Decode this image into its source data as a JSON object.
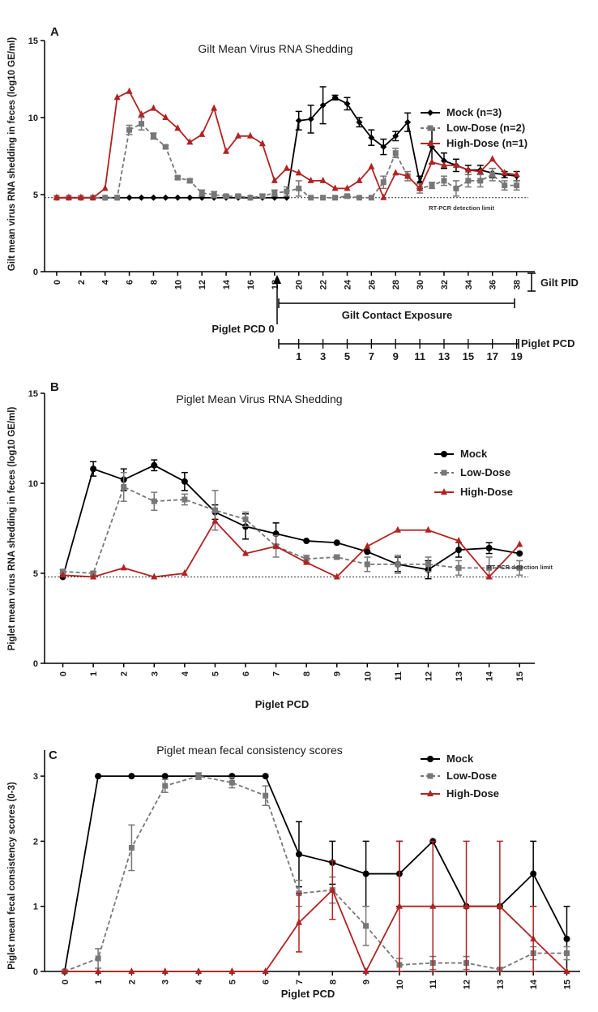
{
  "panels": [
    {
      "id": "A",
      "label": "A",
      "title": "Gilt Mean Virus RNA Shedding",
      "ylabel": "Gilt mean virus RNA shedding in feces (log10 GE/ml)",
      "xlabel": "",
      "ylim": [
        0,
        15
      ],
      "yticks": [
        0,
        5,
        10,
        15
      ],
      "xlim": [
        -1,
        39.5
      ],
      "xticks": [
        0,
        2,
        4,
        6,
        8,
        10,
        12,
        14,
        16,
        18,
        20,
        22,
        24,
        26,
        28,
        30,
        32,
        34,
        36,
        38
      ],
      "detection_limit": 4.8,
      "detection_text": "RT-PCR detection limit",
      "series": [
        {
          "name": "Mock (n=3)",
          "color": "#000000",
          "marker": "diamond",
          "dash": false,
          "x": [
            0,
            1,
            2,
            3,
            4,
            5,
            6,
            7,
            8,
            9,
            10,
            11,
            12,
            13,
            14,
            15,
            16,
            17,
            18,
            19,
            20,
            21,
            22,
            23,
            24,
            25,
            26,
            27,
            28,
            29,
            30,
            31,
            32,
            33,
            34,
            35,
            36,
            37,
            38
          ],
          "y": [
            4.8,
            4.8,
            4.8,
            4.8,
            4.8,
            4.8,
            4.8,
            4.8,
            4.8,
            4.8,
            4.8,
            4.8,
            4.8,
            4.8,
            4.8,
            4.8,
            4.8,
            4.8,
            4.8,
            4.8,
            9.8,
            9.9,
            10.8,
            11.3,
            10.9,
            9.7,
            8.7,
            8.1,
            8.8,
            9.7,
            5.8,
            8.1,
            7.2,
            6.9,
            6.6,
            6.6,
            6.4,
            6.3,
            6.2
          ],
          "err": [
            0,
            0,
            0,
            0,
            0,
            0,
            0,
            0,
            0,
            0,
            0,
            0,
            0,
            0,
            0,
            0,
            0,
            0,
            0,
            0,
            0.6,
            0.9,
            1.2,
            0.15,
            0.4,
            0.3,
            0.5,
            0.5,
            0.3,
            0.6,
            0.4,
            1.1,
            0.5,
            0.4,
            0.3,
            0.3,
            0.3,
            0.2,
            0.3
          ]
        },
        {
          "name": "Low-Dose (n=2)",
          "color": "#777777",
          "marker": "square",
          "dash": true,
          "x": [
            0,
            1,
            2,
            3,
            4,
            5,
            6,
            7,
            8,
            9,
            10,
            11,
            12,
            13,
            14,
            15,
            16,
            17,
            18,
            19,
            20,
            21,
            22,
            23,
            24,
            25,
            26,
            27,
            28,
            29,
            30,
            31,
            32,
            33,
            34,
            35,
            36,
            37,
            38
          ],
          "y": [
            4.8,
            4.8,
            4.8,
            4.8,
            4.8,
            4.8,
            9.2,
            9.6,
            8.8,
            8.1,
            6.1,
            5.9,
            5.1,
            5.0,
            4.9,
            4.9,
            4.8,
            4.9,
            5.1,
            5.2,
            5.4,
            4.8,
            4.8,
            4.8,
            4.9,
            4.8,
            4.8,
            5.8,
            7.7,
            6.2,
            5.4,
            5.6,
            5.9,
            5.4,
            5.9,
            5.9,
            6.3,
            5.6,
            5.6
          ],
          "err": [
            0,
            0,
            0,
            0,
            0,
            0,
            0.3,
            0.4,
            0.2,
            0.1,
            0.1,
            0.1,
            0.2,
            0.2,
            0.1,
            0.1,
            0,
            0.1,
            0.2,
            0.3,
            0.5,
            0,
            0,
            0,
            0.1,
            0,
            0,
            0.4,
            0.3,
            0.3,
            0.3,
            0.2,
            0.3,
            0.5,
            0.4,
            0.4,
            0.4,
            0.3,
            0.3
          ]
        },
        {
          "name": "High-Dose (n=1)",
          "color": "#b22222",
          "marker": "triangle",
          "dash": false,
          "x": [
            0,
            1,
            2,
            3,
            4,
            5,
            6,
            7,
            8,
            9,
            10,
            11,
            12,
            13,
            14,
            15,
            16,
            17,
            18,
            19,
            20,
            21,
            22,
            23,
            24,
            25,
            26,
            27,
            28,
            29,
            30,
            31,
            32,
            33,
            34,
            35,
            36,
            37,
            38
          ],
          "y": [
            4.8,
            4.8,
            4.8,
            4.8,
            5.4,
            11.3,
            11.7,
            10.2,
            10.6,
            10.0,
            9.3,
            8.4,
            8.9,
            10.6,
            7.8,
            8.8,
            8.8,
            8.3,
            5.9,
            6.7,
            6.4,
            5.9,
            5.9,
            5.4,
            5.4,
            5.9,
            6.8,
            4.8,
            6.4,
            6.2,
            5.4,
            7.1,
            6.9,
            6.9,
            6.6,
            6.5,
            7.3,
            6.4,
            6.3
          ],
          "err": []
        }
      ],
      "legend": [
        "Mock (n=3)",
        "Low-Dose (n=2)",
        "High-Dose (n=1)"
      ]
    },
    {
      "id": "B",
      "label": "B",
      "title": "Piglet Mean Virus RNA Shedding",
      "ylabel": "Piglet mean virus RNA shedding in feces (log10 GE/ml)",
      "xlabel": "Piglet PCD",
      "ylim": [
        0,
        15
      ],
      "yticks": [
        0,
        5,
        10,
        15
      ],
      "xlim": [
        -0.6,
        15.5
      ],
      "xticks": [
        0,
        1,
        2,
        3,
        4,
        5,
        6,
        7,
        8,
        9,
        10,
        11,
        12,
        13,
        14,
        15
      ],
      "detection_limit": 4.8,
      "detection_text": "RT-PCR detection limit",
      "series": [
        {
          "name": "Mock",
          "color": "#000000",
          "marker": "circle",
          "dash": false,
          "x": [
            0,
            1,
            2,
            3,
            4,
            5,
            6,
            7,
            8,
            9,
            10,
            11,
            12,
            13,
            14,
            15
          ],
          "y": [
            4.8,
            10.8,
            10.2,
            11.0,
            10.1,
            8.4,
            7.6,
            7.2,
            6.8,
            6.7,
            6.2,
            5.5,
            5.2,
            6.3,
            6.4,
            6.1
          ],
          "err": [
            0,
            0.4,
            0.6,
            0.3,
            0.5,
            0.4,
            0.7,
            0.6,
            0,
            0,
            0,
            0.4,
            0.5,
            0.4,
            0.3,
            0
          ]
        },
        {
          "name": "Low-Dose",
          "color": "#777777",
          "marker": "square",
          "dash": true,
          "x": [
            0,
            1,
            2,
            3,
            4,
            5,
            6,
            7,
            8,
            9,
            10,
            11,
            12,
            13,
            14,
            15
          ],
          "y": [
            5.1,
            5.0,
            9.8,
            9.0,
            9.1,
            8.5,
            8.0,
            6.5,
            5.8,
            5.9,
            5.5,
            5.5,
            5.5,
            5.3,
            5.3,
            5.3
          ],
          "err": [
            0.1,
            0.1,
            0.8,
            0.5,
            0.3,
            1.1,
            0.4,
            0.6,
            0.2,
            0.1,
            0.4,
            0.5,
            0.4,
            0.4,
            0.6,
            0.4
          ]
        },
        {
          "name": "High-Dose",
          "color": "#b22222",
          "marker": "triangle",
          "dash": false,
          "x": [
            0,
            1,
            2,
            3,
            4,
            5,
            6,
            7,
            8,
            9,
            10,
            11,
            12,
            13,
            14,
            15
          ],
          "y": [
            4.9,
            4.8,
            5.3,
            4.8,
            5.0,
            7.9,
            6.1,
            6.5,
            5.6,
            4.8,
            6.5,
            7.4,
            7.4,
            6.8,
            4.8,
            6.6
          ],
          "err": []
        }
      ],
      "legend": [
        "Mock",
        "Low-Dose",
        "High-Dose"
      ]
    },
    {
      "id": "C",
      "label": "C",
      "title": "Piglet mean fecal consistency scores",
      "ylabel": "Piglet mean fecal consistency scores  (0-3)",
      "xlabel": "Piglet PCD",
      "ylim": [
        0,
        3.4
      ],
      "yticks": [
        0,
        1,
        2,
        3
      ],
      "xlim": [
        -0.6,
        15.4
      ],
      "xticks": [
        0,
        1,
        2,
        3,
        4,
        5,
        6,
        7,
        8,
        9,
        10,
        11,
        12,
        13,
        14,
        15
      ],
      "series": [
        {
          "name": "Mock",
          "color": "#000000",
          "marker": "circle",
          "dash": false,
          "x": [
            0,
            1,
            2,
            3,
            4,
            5,
            6,
            7,
            8,
            9,
            10,
            11,
            12,
            13,
            14,
            15
          ],
          "y": [
            0,
            3,
            3,
            3,
            3,
            3,
            3,
            1.8,
            1.67,
            1.5,
            1.5,
            2,
            1,
            1,
            1.5,
            0.5
          ],
          "err": [
            0,
            0,
            0,
            0,
            0,
            0,
            0,
            0.5,
            0.33,
            0.5,
            0.5,
            0,
            0,
            0,
            0.5,
            0.5
          ]
        },
        {
          "name": "Low-Dose",
          "color": "#777777",
          "marker": "square",
          "dash": true,
          "x": [
            0,
            1,
            2,
            3,
            4,
            5,
            6,
            7,
            8,
            9,
            10,
            11,
            12,
            13,
            14,
            15
          ],
          "y": [
            0,
            0.2,
            1.9,
            2.85,
            3.0,
            2.9,
            2.7,
            1.2,
            1.25,
            0.7,
            0.1,
            0.13,
            0.13,
            0.03,
            0.28,
            0.28
          ],
          "err": [
            0,
            0.15,
            0.35,
            0.1,
            0.05,
            0.08,
            0.15,
            0.2,
            0.2,
            0.3,
            0.1,
            0.1,
            0.1,
            0.03,
            0.1,
            0.1
          ]
        },
        {
          "name": "High-Dose",
          "color": "#b22222",
          "marker": "triangle",
          "dash": false,
          "x": [
            0,
            1,
            2,
            3,
            4,
            5,
            6,
            7,
            8,
            9,
            10,
            11,
            12,
            13,
            14,
            15
          ],
          "y": [
            0,
            0,
            0,
            0,
            0,
            0,
            0,
            0.75,
            1.25,
            0,
            1,
            1,
            1,
            1,
            0.5,
            0
          ],
          "err": [
            0,
            0,
            0,
            0,
            0,
            0,
            0,
            0.45,
            0.45,
            0,
            1,
            1,
            1,
            1,
            0.5,
            0
          ]
        }
      ],
      "legend": [
        "Mock",
        "Low-Dose",
        "High-Dose"
      ]
    }
  ],
  "gilt_axis": {
    "pid_label": "Gilt PID",
    "contact_label": "Gilt Contact Exposure",
    "piglet_pcd0_label": "Piglet PCD 0",
    "piglet_pcd_label": "Piglet PCD",
    "pcd_ticks": [
      "1",
      "3",
      "5",
      "7",
      "9",
      "11",
      "13",
      "15",
      "17",
      "19"
    ]
  }
}
